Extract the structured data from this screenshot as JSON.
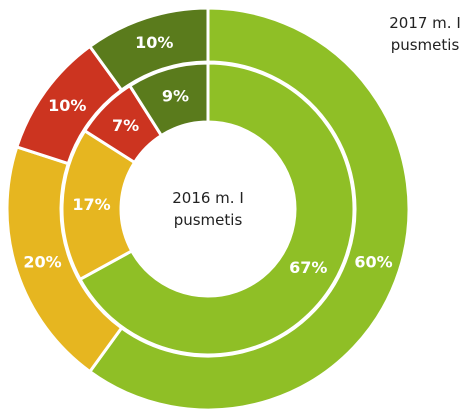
{
  "chart_data": {
    "type": "doughnut",
    "colors": [
      "#8fbf26",
      "#e6b620",
      "#cc3420",
      "#5a7b1c"
    ],
    "series": [
      {
        "name": "2017 m. I pusmetis",
        "values": [
          60,
          20,
          10,
          10
        ],
        "value_labels": [
          "60%",
          "20%",
          "10%",
          "10%"
        ]
      },
      {
        "name": "2016 m. I pusmetis",
        "values": [
          67,
          17,
          7,
          9
        ],
        "value_labels": [
          "67%",
          "17%",
          "7%",
          "9%"
        ]
      }
    ]
  }
}
